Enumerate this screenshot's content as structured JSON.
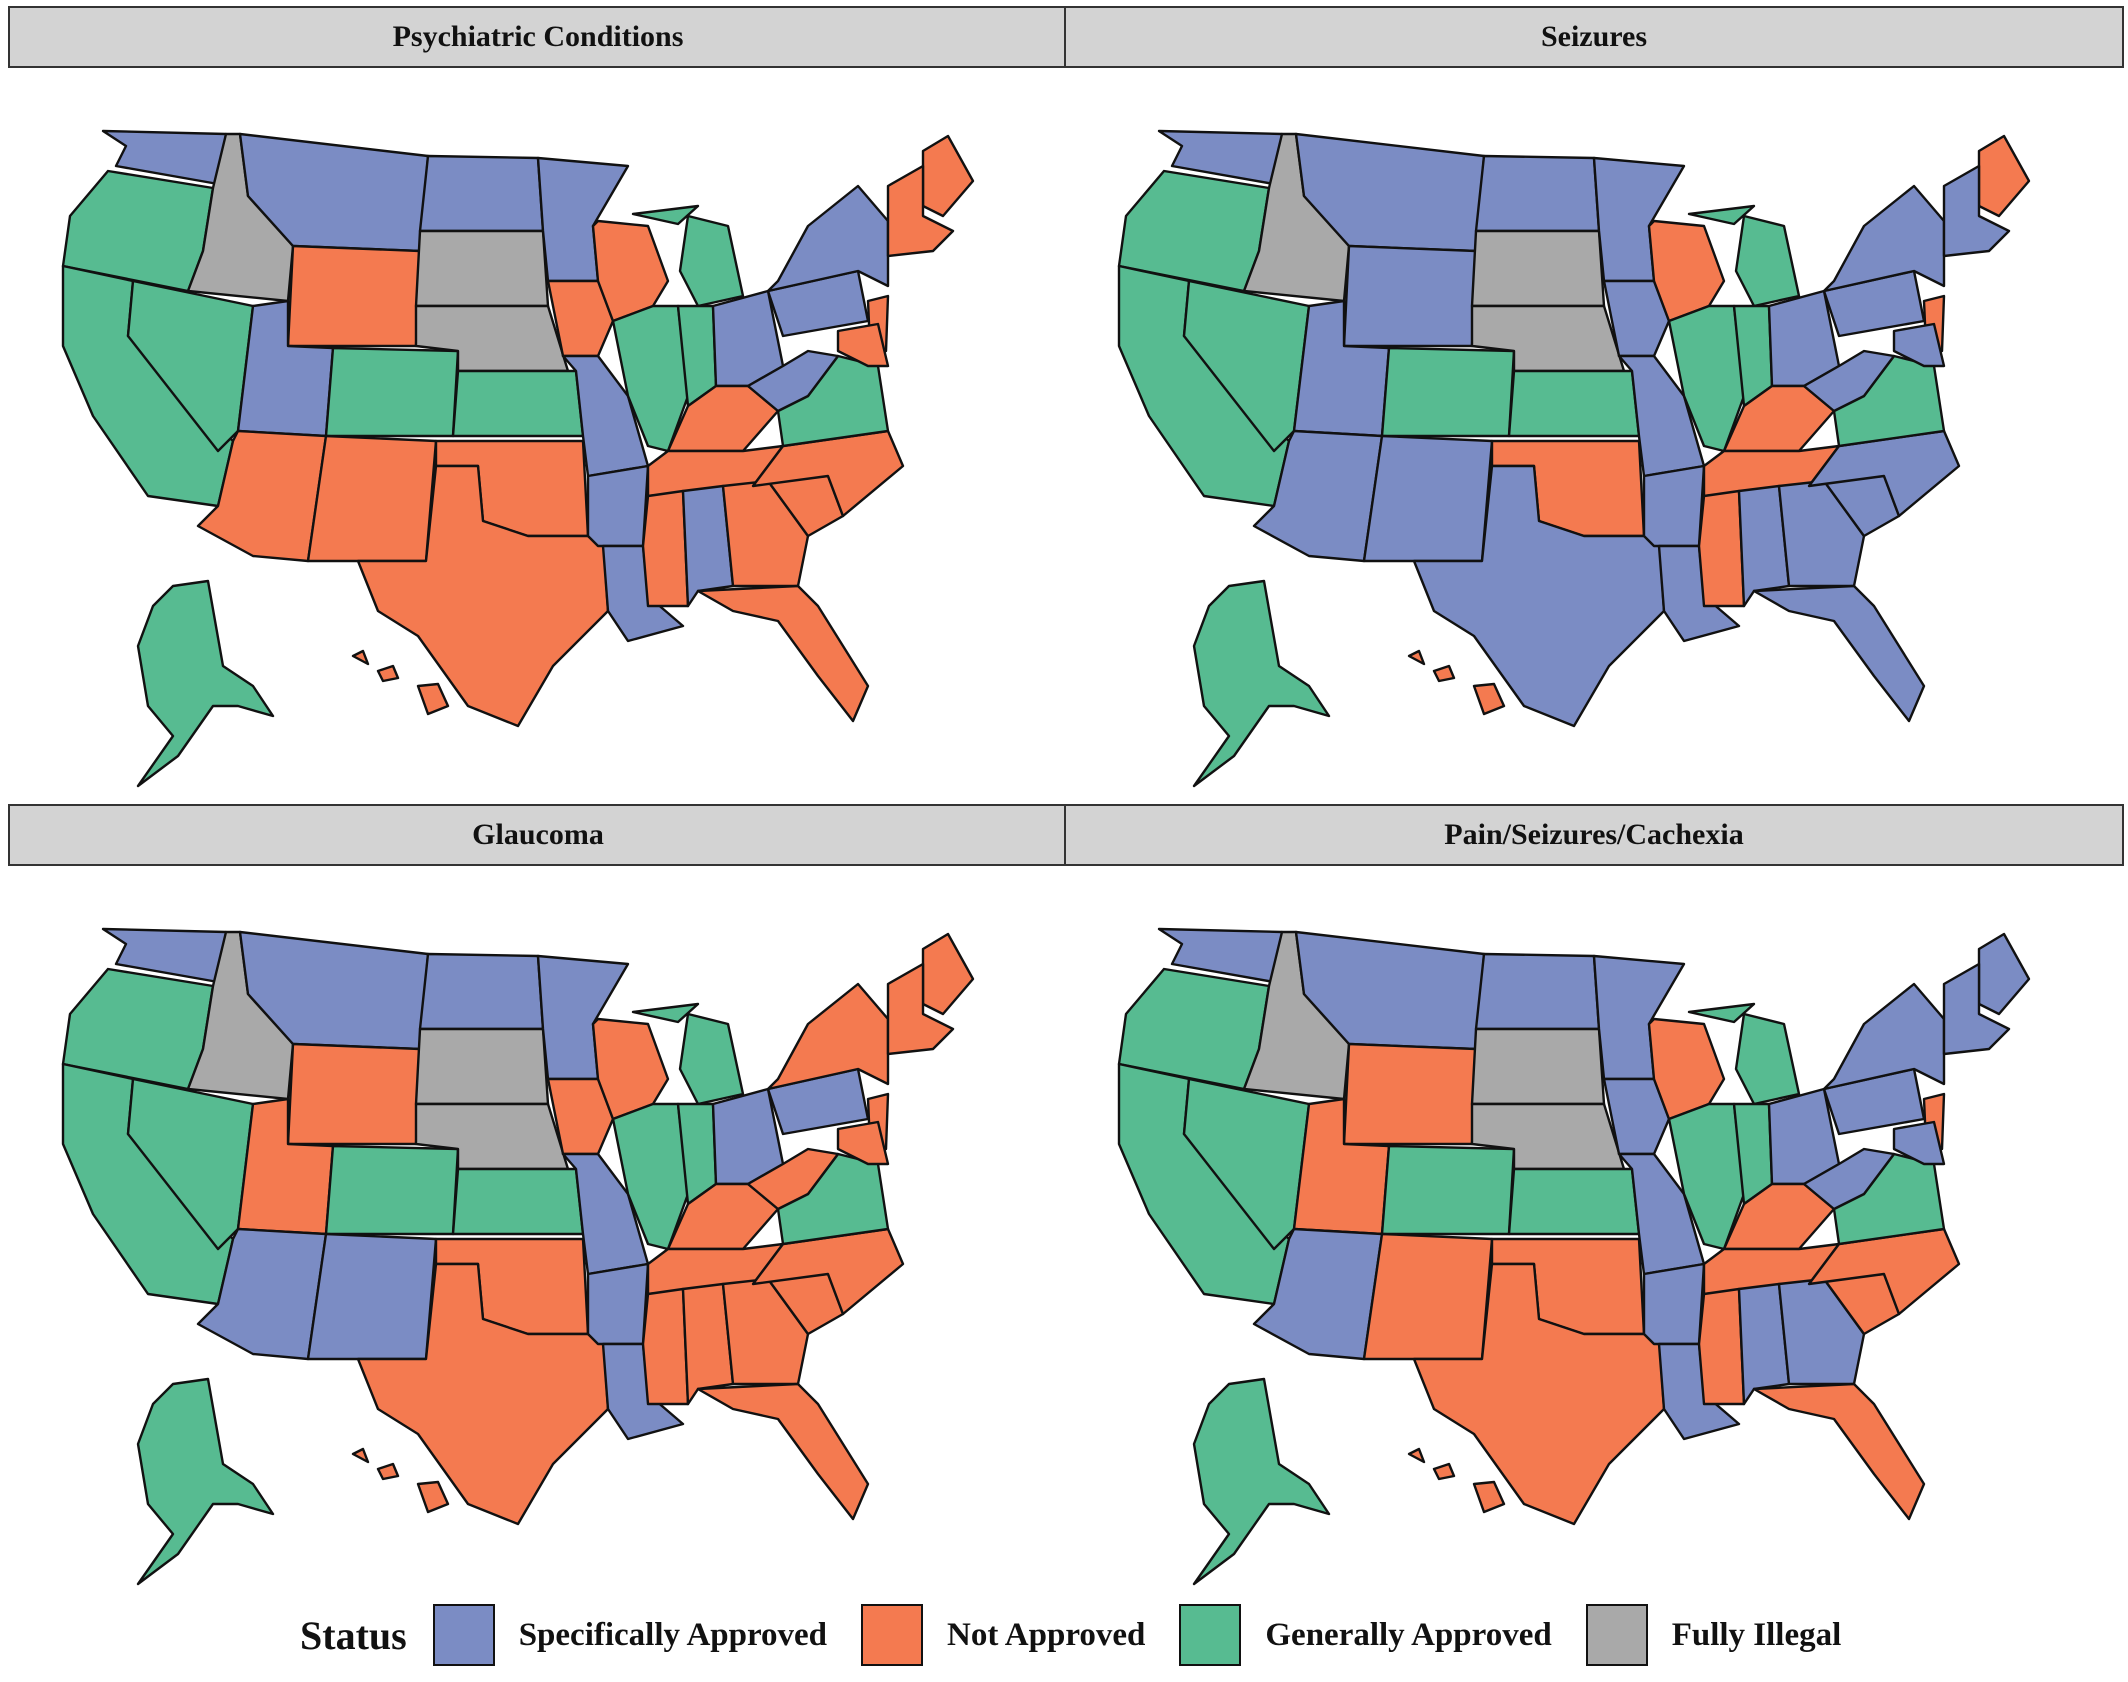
{
  "colors": {
    "specifically_approved": "#7b8cc4",
    "not_approved": "#f47a50",
    "generally_approved": "#57bb91",
    "fully_illegal": "#a9a9a9"
  },
  "legend": {
    "title": "Status",
    "items": [
      {
        "label": "Specifically Approved",
        "key": "specifically_approved"
      },
      {
        "label": "Not Approved",
        "key": "not_approved"
      },
      {
        "label": "Generally Approved",
        "key": "generally_approved"
      },
      {
        "label": "Fully Illegal",
        "key": "fully_illegal"
      }
    ]
  },
  "panels": [
    {
      "title": "Psychiatric Conditions",
      "states": {
        "WA": "S",
        "OR": "G",
        "CA": "G",
        "NV": "G",
        "ID": "F",
        "MT": "S",
        "WY": "N",
        "UT": "S",
        "CO": "G",
        "AZ": "N",
        "NM": "N",
        "ND": "S",
        "SD": "F",
        "NE": "F",
        "KS": "G",
        "OK": "N",
        "TX": "N",
        "MN": "S",
        "IA": "N",
        "MO": "S",
        "AR": "S",
        "LA": "S",
        "WI": "N",
        "IL": "G",
        "MI": "G",
        "IN": "G",
        "OH": "S",
        "KY": "N",
        "TN": "N",
        "MS": "N",
        "AL": "S",
        "GA": "N",
        "FL": "N",
        "SC": "N",
        "NC": "N",
        "VA": "G",
        "WV": "S",
        "PA": "S",
        "NY": "S",
        "ME": "N",
        "NE6": "N",
        "NJ": "N",
        "MD": "N",
        "AK": "G",
        "HI": "N"
      }
    },
    {
      "title": "Seizures",
      "states": {
        "WA": "S",
        "OR": "G",
        "CA": "G",
        "NV": "G",
        "ID": "F",
        "MT": "S",
        "WY": "S",
        "UT": "S",
        "CO": "G",
        "AZ": "S",
        "NM": "S",
        "ND": "S",
        "SD": "F",
        "NE": "F",
        "KS": "G",
        "OK": "N",
        "TX": "S",
        "MN": "S",
        "IA": "S",
        "MO": "S",
        "AR": "S",
        "LA": "S",
        "WI": "N",
        "IL": "G",
        "MI": "G",
        "IN": "G",
        "OH": "S",
        "KY": "N",
        "TN": "N",
        "MS": "N",
        "AL": "S",
        "GA": "S",
        "FL": "S",
        "SC": "S",
        "NC": "S",
        "VA": "G",
        "WV": "S",
        "PA": "S",
        "NY": "S",
        "ME": "N",
        "NE6": "S",
        "NJ": "N",
        "MD": "S",
        "AK": "G",
        "HI": "N"
      }
    },
    {
      "title": "Glaucoma",
      "states": {
        "WA": "S",
        "OR": "G",
        "CA": "G",
        "NV": "G",
        "ID": "F",
        "MT": "S",
        "WY": "N",
        "UT": "N",
        "CO": "G",
        "AZ": "S",
        "NM": "S",
        "ND": "S",
        "SD": "F",
        "NE": "F",
        "KS": "G",
        "OK": "N",
        "TX": "N",
        "MN": "S",
        "IA": "N",
        "MO": "S",
        "AR": "S",
        "LA": "S",
        "WI": "N",
        "IL": "G",
        "MI": "G",
        "IN": "G",
        "OH": "S",
        "KY": "N",
        "TN": "N",
        "MS": "N",
        "AL": "N",
        "GA": "N",
        "FL": "N",
        "SC": "N",
        "NC": "N",
        "VA": "G",
        "WV": "N",
        "PA": "S",
        "NY": "N",
        "ME": "N",
        "NE6": "N",
        "NJ": "N",
        "MD": "N",
        "AK": "G",
        "HI": "N"
      }
    },
    {
      "title": "Pain/Seizures/Cachexia",
      "states": {
        "WA": "S",
        "OR": "G",
        "CA": "G",
        "NV": "G",
        "ID": "F",
        "MT": "S",
        "WY": "N",
        "UT": "N",
        "CO": "G",
        "AZ": "S",
        "NM": "N",
        "ND": "S",
        "SD": "F",
        "NE": "F",
        "KS": "G",
        "OK": "N",
        "TX": "N",
        "MN": "S",
        "IA": "S",
        "MO": "S",
        "AR": "S",
        "LA": "S",
        "WI": "N",
        "IL": "G",
        "MI": "G",
        "IN": "G",
        "OH": "S",
        "KY": "N",
        "TN": "N",
        "MS": "N",
        "AL": "S",
        "GA": "S",
        "FL": "N",
        "SC": "N",
        "NC": "N",
        "VA": "G",
        "WV": "S",
        "PA": "S",
        "NY": "S",
        "ME": "S",
        "NE6": "S",
        "NJ": "N",
        "MD": "S",
        "AK": "G",
        "HI": "N"
      }
    }
  ]
}
